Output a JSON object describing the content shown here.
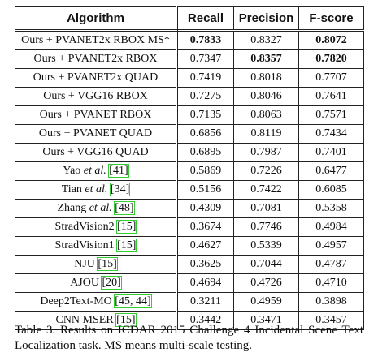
{
  "table": {
    "header": [
      "Algorithm",
      "Recall",
      "Precision",
      "F-score"
    ],
    "rows": [
      {
        "algorithm": {
          "name": "Ours + PVANET2x RBOX MS*"
        },
        "recall": "0.7833",
        "precision": "0.8327",
        "fscore": "0.8072",
        "bold": [
          "recall",
          "fscore"
        ]
      },
      {
        "algorithm": {
          "name": "Ours + PVANET2x RBOX"
        },
        "recall": "0.7347",
        "precision": "0.8357",
        "fscore": "0.7820",
        "bold": [
          "precision",
          "fscore"
        ]
      },
      {
        "algorithm": {
          "name": "Ours + PVANET2x QUAD"
        },
        "recall": "0.7419",
        "precision": "0.8018",
        "fscore": "0.7707"
      },
      {
        "algorithm": {
          "name": "Ours + VGG16 RBOX"
        },
        "recall": "0.7275",
        "precision": "0.8046",
        "fscore": "0.7641"
      },
      {
        "algorithm": {
          "name": "Ours + PVANET RBOX"
        },
        "recall": "0.7135",
        "precision": "0.8063",
        "fscore": "0.7571"
      },
      {
        "algorithm": {
          "name": "Ours + PVANET QUAD"
        },
        "recall": "0.6856",
        "precision": "0.8119",
        "fscore": "0.7434"
      },
      {
        "algorithm": {
          "name": "Ours + VGG16 QUAD"
        },
        "recall": "0.6895",
        "precision": "0.7987",
        "fscore": "0.7401"
      },
      {
        "algorithm": {
          "name": "Yao",
          "etal": "et al.",
          "cite": "[41]"
        },
        "recall": "0.5869",
        "precision": "0.7226",
        "fscore": "0.6477"
      },
      {
        "algorithm": {
          "name": "Tian",
          "etal": "et al.",
          "cite": "[34]"
        },
        "recall": "0.5156",
        "precision": "0.7422",
        "fscore": "0.6085"
      },
      {
        "algorithm": {
          "name": "Zhang",
          "etal": "et al.",
          "cite": "[48]"
        },
        "recall": "0.4309",
        "precision": "0.7081",
        "fscore": "0.5358"
      },
      {
        "algorithm": {
          "name": "StradVision2",
          "cite": "[15]"
        },
        "recall": "0.3674",
        "precision": "0.7746",
        "fscore": "0.4984"
      },
      {
        "algorithm": {
          "name": "StradVision1",
          "cite": "[15]"
        },
        "recall": "0.4627",
        "precision": "0.5339",
        "fscore": "0.4957"
      },
      {
        "algorithm": {
          "name": "NJU",
          "cite": "[15]"
        },
        "recall": "0.3625",
        "precision": "0.7044",
        "fscore": "0.4787"
      },
      {
        "algorithm": {
          "name": "AJOU",
          "cite": "[20]"
        },
        "recall": "0.4694",
        "precision": "0.4726",
        "fscore": "0.4710"
      },
      {
        "algorithm": {
          "name": "Deep2Text-MO",
          "cite": "[45, 44]"
        },
        "recall": "0.3211",
        "precision": "0.4959",
        "fscore": "0.3898"
      },
      {
        "algorithm": {
          "name": "CNN MSER",
          "cite": "[15]"
        },
        "recall": "0.3442",
        "precision": "0.3471",
        "fscore": "0.3457"
      }
    ],
    "caption": "Table 3. Results on ICDAR 2015 Challenge 4 Incidental Scene Text Localization task. MS means multi-scale testing."
  }
}
